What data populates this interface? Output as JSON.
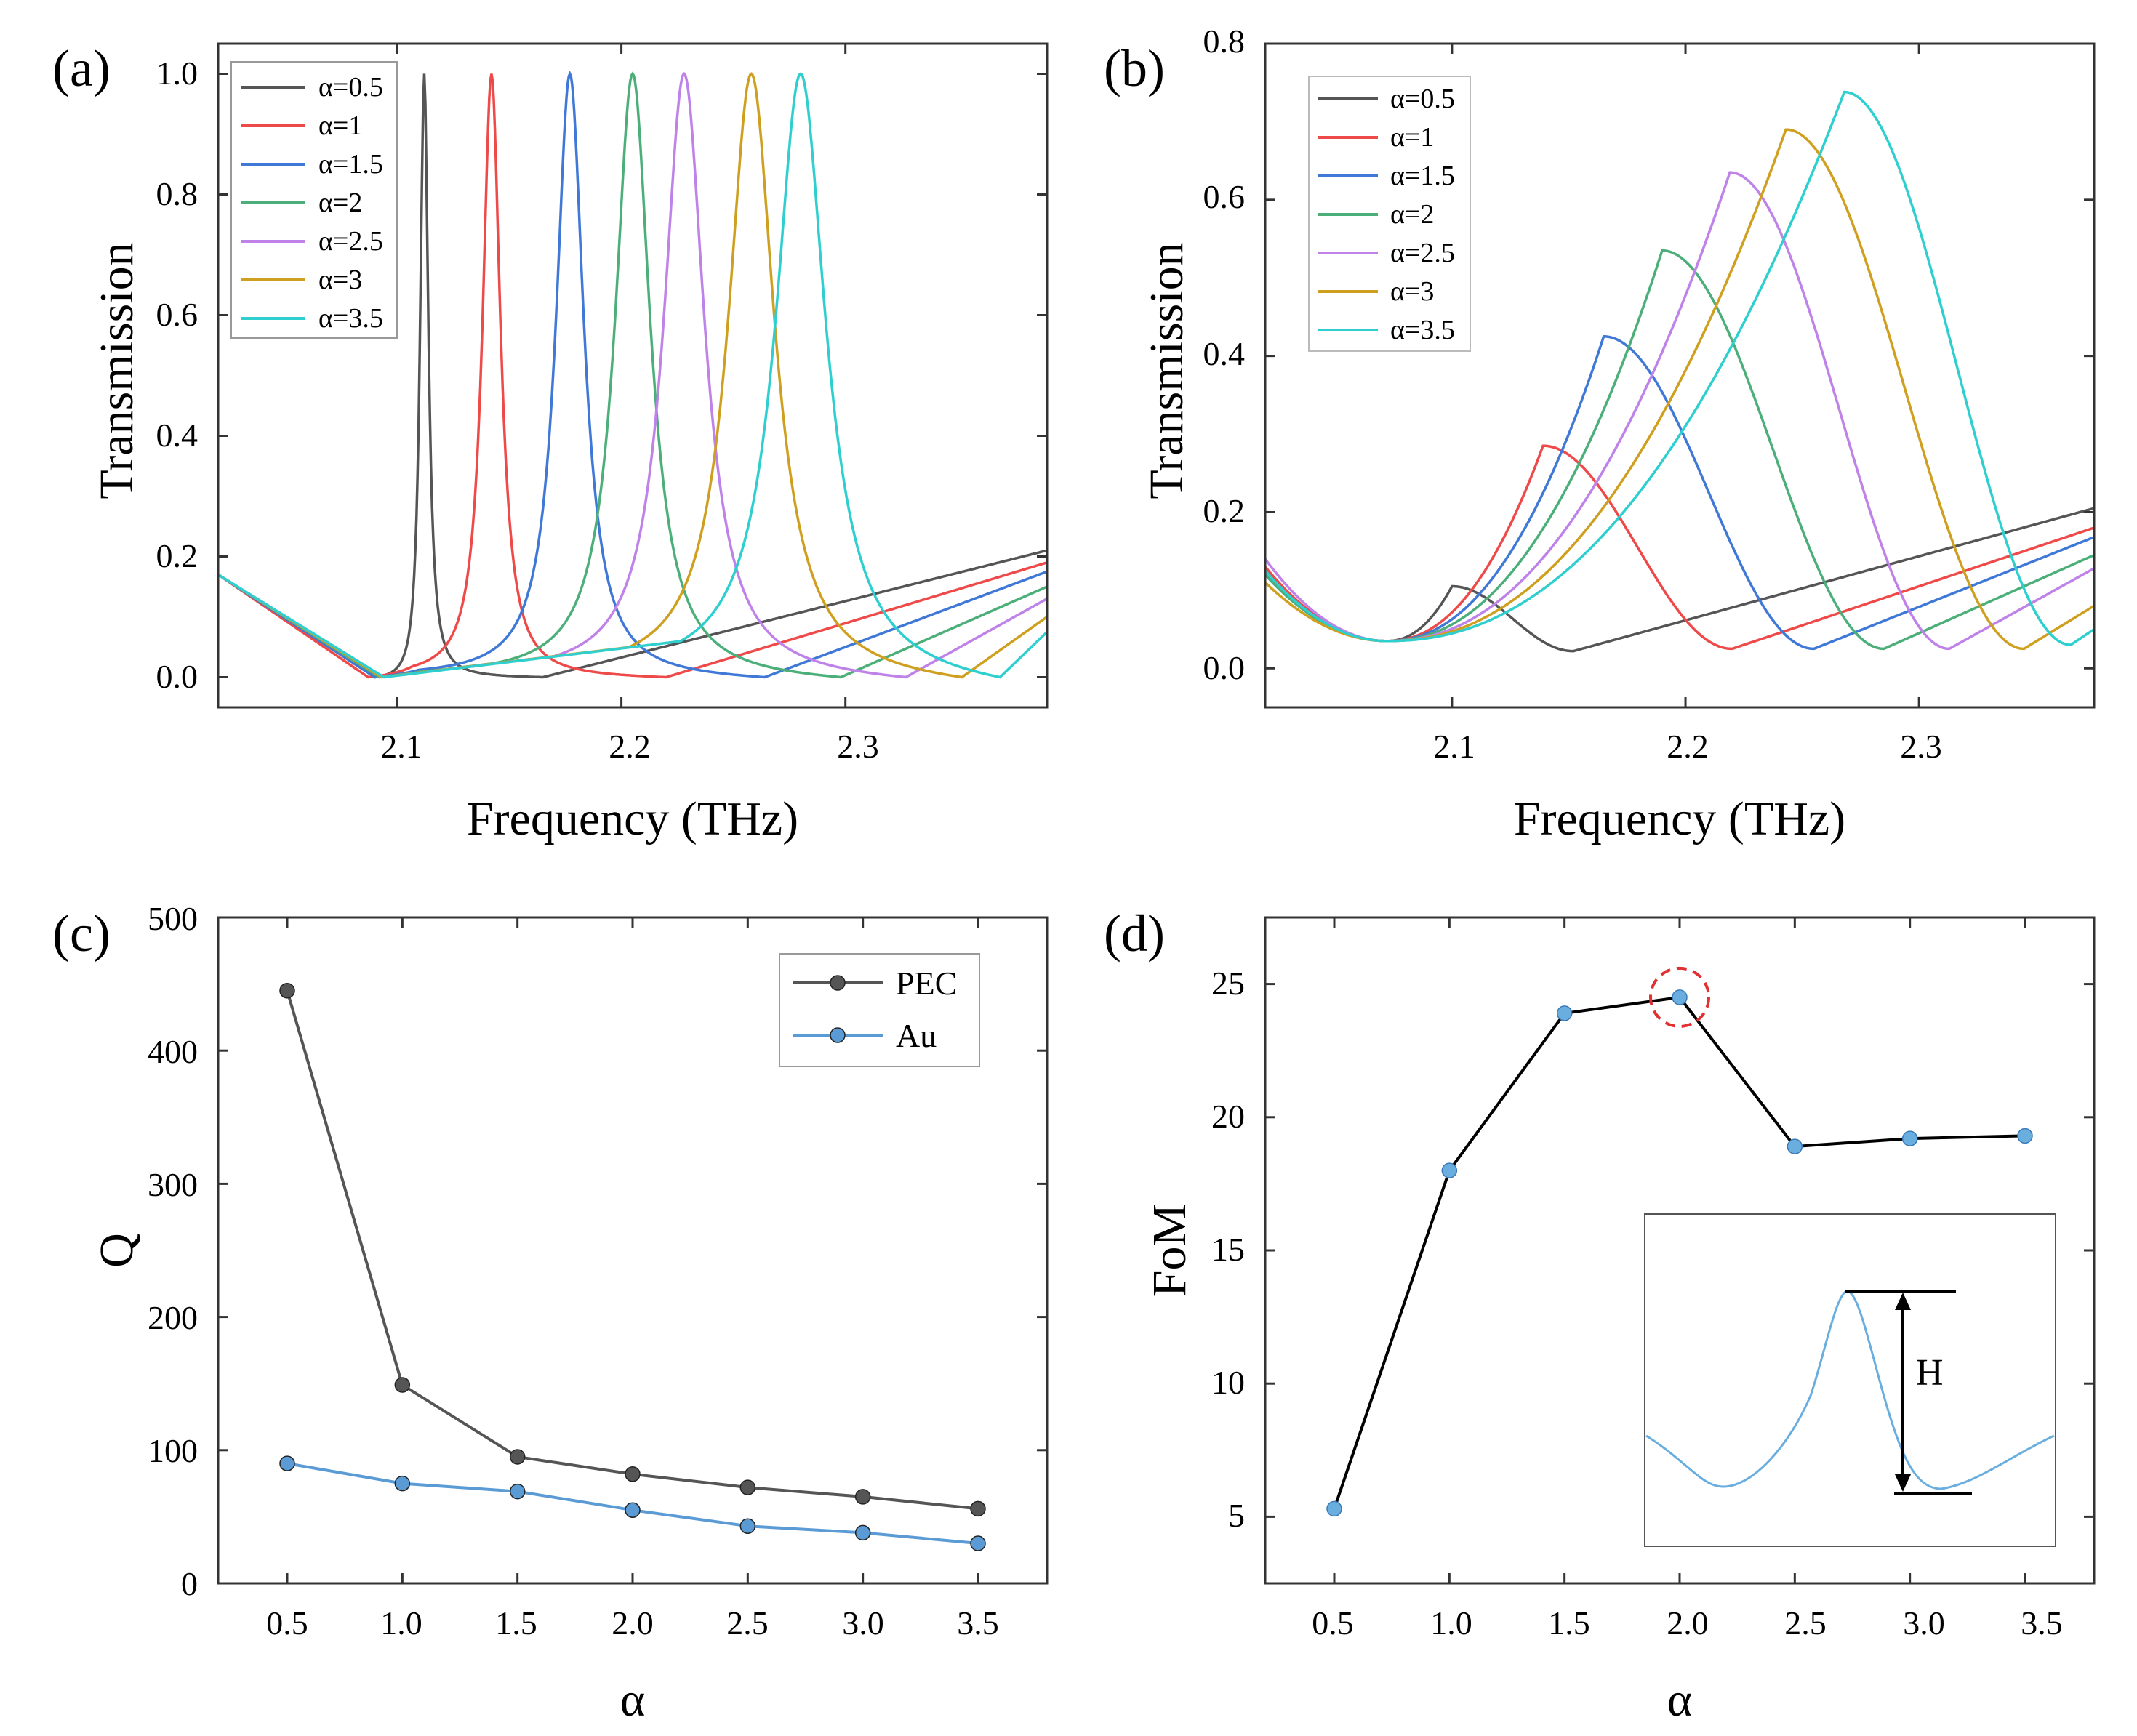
{
  "colors": {
    "a0.5": "#555555",
    "a1": "#ef4a4a",
    "a1.5": "#3f78d6",
    "a2": "#4caf7a",
    "a2.5": "#bf82e8",
    "a3": "#cfa020",
    "a3.5": "#2fcfcf",
    "pec": "#555555",
    "au": "#5b9bd5",
    "fom_line": "#000000",
    "fom_marker": "#6aaee0",
    "highlight": "#e03030"
  },
  "panels": [
    {
      "label": "(a)",
      "xlabel": "Frequency (THz)",
      "ylabel": "Transmission",
      "xticks": [
        "2.1",
        "2.2",
        "2.3"
      ],
      "yticks": [
        "0.0",
        "0.2",
        "0.4",
        "0.6",
        "0.8",
        "1.0"
      ],
      "legend": [
        "α=0.5",
        "α=1",
        "α=1.5",
        "α=2",
        "α=2.5",
        "α=3",
        "α=3.5"
      ]
    },
    {
      "label": "(b)",
      "xlabel": "Frequency (THz)",
      "ylabel": "Transmission",
      "xticks": [
        "2.1",
        "2.2",
        "2.3"
      ],
      "yticks": [
        "0.0",
        "0.2",
        "0.4",
        "0.6",
        "0.8"
      ],
      "legend": [
        "α=0.5",
        "α=1",
        "α=1.5",
        "α=2",
        "α=2.5",
        "α=3",
        "α=3.5"
      ]
    },
    {
      "label": "(c)",
      "xlabel": "α",
      "ylabel": "Q",
      "xticks": [
        "0.5",
        "1.0",
        "1.5",
        "2.0",
        "2.5",
        "3.0",
        "3.5"
      ],
      "yticks": [
        "0",
        "100",
        "200",
        "300",
        "400",
        "500"
      ],
      "legend": [
        "PEC",
        "Au"
      ]
    },
    {
      "label": "(d)",
      "xlabel": "α",
      "ylabel": "FoM",
      "xticks": [
        "0.5",
        "1.0",
        "1.5",
        "2.0",
        "2.5",
        "3.0",
        "3.5"
      ],
      "yticks": [
        "5",
        "10",
        "15",
        "20",
        "25"
      ],
      "inset_label": "H"
    }
  ],
  "chart_data": [
    {
      "type": "line",
      "panel": "(a)",
      "xlabel": "Frequency (THz)",
      "ylabel": "Transmission",
      "xlim": [
        2.02,
        2.39
      ],
      "ylim": [
        -0.05,
        1.05
      ],
      "series": [
        {
          "name": "α=0.5",
          "f0": 2.112,
          "peak": 1.0,
          "gamma": 0.0022,
          "fdip": 2.165,
          "slope_before": 1.8,
          "slope_after": 0.9,
          "dip1": 2.09
        },
        {
          "name": "α=1",
          "f0": 2.142,
          "peak": 1.0,
          "gamma": 0.0048,
          "fdip": 2.22,
          "slope_before": 1.9,
          "slope_after": 1.0,
          "dip1": 2.087
        },
        {
          "name": "α=1.5",
          "f0": 2.177,
          "peak": 1.0,
          "gamma": 0.0075,
          "fdip": 2.264,
          "slope_before": 1.9,
          "slope_after": 1.0,
          "dip1": 2.09
        },
        {
          "name": "α=2",
          "f0": 2.205,
          "peak": 1.0,
          "gamma": 0.0095,
          "fdip": 2.298,
          "slope_before": 1.9,
          "slope_after": 1.0,
          "dip1": 2.092
        },
        {
          "name": "α=2.5",
          "f0": 2.228,
          "peak": 1.0,
          "gamma": 0.011,
          "fdip": 2.327,
          "slope_before": 1.9,
          "slope_after": 1.0,
          "dip1": 2.093
        },
        {
          "name": "α=3",
          "f0": 2.258,
          "peak": 1.0,
          "gamma": 0.0125,
          "fdip": 2.352,
          "slope_before": 1.9,
          "slope_after": 1.0,
          "dip1": 2.093
        },
        {
          "name": "α=3.5",
          "f0": 2.28,
          "peak": 1.0,
          "gamma": 0.0135,
          "fdip": 2.369,
          "slope_before": 1.9,
          "slope_after": 1.0,
          "dip1": 2.094
        }
      ]
    },
    {
      "type": "line",
      "panel": "(b)",
      "xlabel": "Frequency (THz)",
      "ylabel": "Transmission",
      "xlim": [
        2.02,
        2.375
      ],
      "ylim": [
        -0.05,
        0.8
      ],
      "series": [
        {
          "name": "α=0.5",
          "f0": 2.1,
          "peak": 0.105,
          "fdip": 2.152,
          "dipval": 0.022,
          "end": 0.205
        },
        {
          "name": "α=1",
          "f0": 2.139,
          "peak": 0.285,
          "fdip": 2.22,
          "dipval": 0.025,
          "end": 0.18
        },
        {
          "name": "α=1.5",
          "f0": 2.165,
          "peak": 0.425,
          "fdip": 2.255,
          "dipval": 0.025,
          "end": 0.168
        },
        {
          "name": "α=2",
          "f0": 2.19,
          "peak": 0.535,
          "fdip": 2.285,
          "dipval": 0.025,
          "end": 0.145
        },
        {
          "name": "α=2.5",
          "f0": 2.219,
          "peak": 0.635,
          "fdip": 2.313,
          "dipval": 0.025,
          "end": 0.128
        },
        {
          "name": "α=3",
          "f0": 2.243,
          "peak": 0.69,
          "fdip": 2.345,
          "dipval": 0.025,
          "end": 0.08
        },
        {
          "name": "α=3.5",
          "f0": 2.268,
          "peak": 0.738,
          "fdip": 2.365,
          "dipval": 0.03,
          "end": 0.05
        }
      ]
    },
    {
      "type": "line",
      "panel": "(c)",
      "xlabel": "α",
      "ylabel": "Q",
      "xlim": [
        0.2,
        3.8
      ],
      "ylim": [
        0,
        500
      ],
      "x": [
        0.5,
        1.0,
        1.5,
        2.0,
        2.5,
        3.0,
        3.5
      ],
      "series": [
        {
          "name": "PEC",
          "values": [
            445,
            149,
            95,
            82,
            72,
            65,
            56
          ]
        },
        {
          "name": "Au",
          "values": [
            90,
            75,
            69,
            55,
            43,
            38,
            30
          ]
        }
      ]
    },
    {
      "type": "line",
      "panel": "(d)",
      "xlabel": "α",
      "ylabel": "FoM",
      "xlim": [
        0.2,
        3.8
      ],
      "ylim": [
        2.5,
        27.5
      ],
      "x": [
        0.5,
        1.0,
        1.5,
        2.0,
        2.5,
        3.0,
        3.5
      ],
      "series": [
        {
          "values": [
            5.3,
            18.0,
            23.9,
            24.5,
            18.9,
            19.2,
            19.3
          ]
        }
      ],
      "highlight_x": 2.0
    }
  ]
}
